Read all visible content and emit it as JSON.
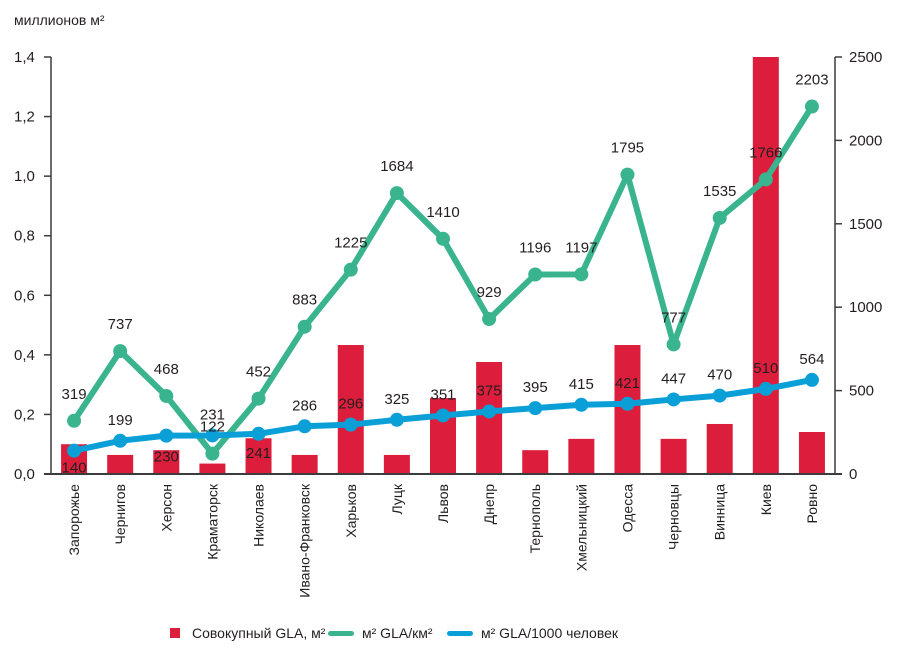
{
  "chart_data": {
    "type": "bar",
    "title": "",
    "y_unit_label": "миллионов м²",
    "categories": [
      "Запорожье",
      "Чернигов",
      "Херсон",
      "Краматорск",
      "Николаев",
      "Ивано-Франковск",
      "Харьков",
      "Луцк",
      "Львов",
      "Днепр",
      "Тернополь",
      "Хмельницкий",
      "Одесса",
      "Черновцы",
      "Винница",
      "Киев",
      "Ровно"
    ],
    "left_axis": {
      "ylim": [
        0,
        1.4
      ],
      "ticks": [
        "0,0",
        "0,2",
        "0,4",
        "0,6",
        "0,8",
        "1,0",
        "1,2",
        "1,4"
      ],
      "tick_values": [
        0,
        0.2,
        0.4,
        0.6,
        0.8,
        1.0,
        1.2,
        1.4
      ]
    },
    "right_axis": {
      "ylim": [
        0,
        2500
      ],
      "ticks": [
        "0",
        "500",
        "1000",
        "1500",
        "2000",
        "2500"
      ],
      "tick_values": [
        0,
        500,
        1000,
        1500,
        2000,
        2500
      ]
    },
    "grid": false,
    "legend_position": "bottom",
    "series": [
      {
        "name": "Совокупный GLA, м²",
        "type": "bar",
        "axis": "left",
        "color": "#dc1e3c",
        "values": [
          0.1,
          0.064,
          0.08,
          0.035,
          0.12,
          0.064,
          0.433,
          0.064,
          0.255,
          0.376,
          0.08,
          0.118,
          0.433,
          0.118,
          0.168,
          1.4,
          0.141
        ]
      },
      {
        "name": "м² GLA/км²",
        "type": "line",
        "axis": "right",
        "color": "#3ab48e",
        "values": [
          319,
          737,
          468,
          122,
          452,
          883,
          1225,
          1684,
          1410,
          929,
          1196,
          1197,
          1795,
          777,
          1535,
          1766,
          2203
        ],
        "labels": [
          "319",
          "737",
          "468",
          "122",
          "452",
          "883",
          "1225",
          "1684",
          "1410",
          "929",
          "1196",
          "1197",
          "1795",
          "777",
          "1535",
          "1766",
          "2203"
        ]
      },
      {
        "name": "м² GLA/1000 человек",
        "type": "line",
        "axis": "right",
        "color": "#0aa0d7",
        "values": [
          140,
          199,
          230,
          231,
          241,
          286,
          296,
          325,
          351,
          375,
          395,
          415,
          421,
          447,
          470,
          510,
          564
        ],
        "labels": [
          "140",
          "199",
          "230",
          "231",
          "241",
          "286",
          "296",
          "325",
          "351",
          "375",
          "395",
          "415",
          "421",
          "447",
          "470",
          "510",
          "564"
        ]
      }
    ]
  },
  "legend": {
    "items": [
      {
        "label": "Совокупный GLA, м²",
        "color": "#dc1e3c",
        "kind": "bar"
      },
      {
        "label": "м² GLA/км²",
        "color": "#3ab48e",
        "kind": "line"
      },
      {
        "label": "м² GLA/1000 человек",
        "color": "#0aa0d7",
        "kind": "line"
      }
    ]
  }
}
